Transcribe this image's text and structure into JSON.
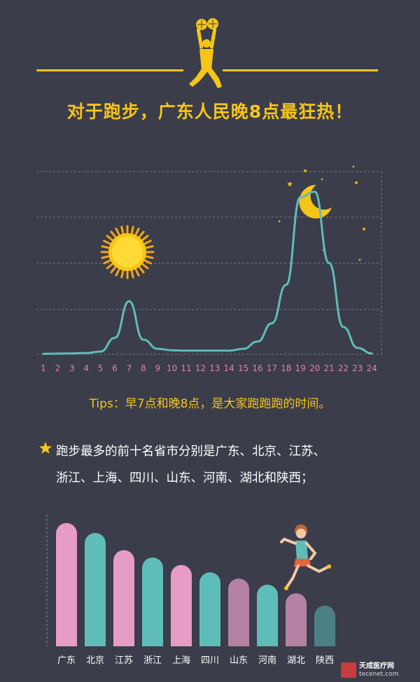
{
  "headline": "对于跑步，广东人民晚8点最狂热！",
  "tips": "Tips：早7点和晚8点，是大家跑跑跑的时间。",
  "top10_text_line1": "跑步最多的前十名省市分别是广东、北京、江苏、",
  "top10_text_line2": "浙江、上海、四川、山东、河南、湖北和陕西；",
  "footer": {
    "logo_text": "天成医疗网",
    "url": "tecenet.com",
    "seal_text": "天成"
  },
  "colors": {
    "background": "#3b3d4a",
    "accent": "#f5c518",
    "line": "#5fbdb9",
    "hour_labels": "#e07fb5",
    "pink": "#e79cc6",
    "teal": "#5fbdb9",
    "mauve": "#b582a4",
    "dark_teal": "#4d7f86"
  },
  "icons": [
    "basketball-player-icon",
    "sun-icon",
    "crescent-moon-icon",
    "star-icon",
    "runner-icon"
  ],
  "chart_data": [
    {
      "type": "line",
      "title": "",
      "xlabel": "",
      "ylabel": "",
      "x": [
        "1",
        "2",
        "3",
        "4",
        "5",
        "6",
        "7",
        "8",
        "9",
        "10",
        "11",
        "12",
        "13",
        "14",
        "15",
        "16",
        "17",
        "18",
        "19",
        "20",
        "21",
        "22",
        "23",
        "24"
      ],
      "series": [
        {
          "values": [
            0.3,
            0.4,
            0.5,
            0.7,
            1.5,
            9,
            29,
            8,
            3,
            2.2,
            2,
            2,
            2,
            2,
            3,
            7,
            17,
            38,
            86,
            89,
            50,
            15,
            3.5,
            0.5
          ]
        }
      ],
      "ylim": [
        0,
        100
      ],
      "grid": true
    },
    {
      "type": "bar",
      "title": "",
      "categories": [
        "广东",
        "北京",
        "江苏",
        "浙江",
        "上海",
        "四川",
        "山东",
        "河南",
        "湖北",
        "陕西"
      ],
      "values": [
        100,
        92,
        78,
        72,
        66,
        60,
        55,
        50,
        43,
        33
      ],
      "ylim": [
        0,
        100
      ],
      "grid": false
    }
  ]
}
